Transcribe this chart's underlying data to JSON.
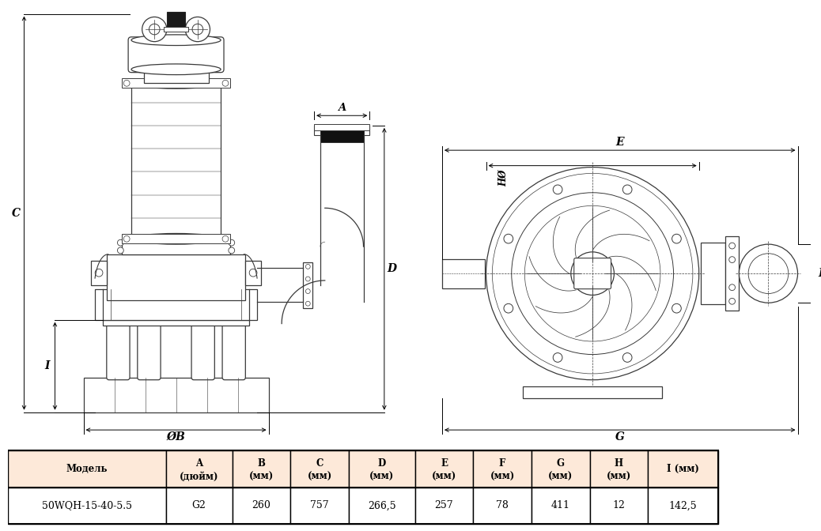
{
  "table_header_row1": [
    "Модель",
    "A",
    "B",
    "C",
    "D",
    "E",
    "F",
    "G",
    "H",
    "I (мм)"
  ],
  "table_header_row2": [
    "",
    "(дюйм)",
    "(мм)",
    "(мм)",
    "(мм)",
    "(мм)",
    "(мм)",
    "(мм)",
    "(мм)",
    ""
  ],
  "table_data": [
    "50WQH-15-40-5.5",
    "G2",
    "260",
    "757",
    "266,5",
    "257",
    "78",
    "411",
    "12",
    "142,5"
  ],
  "header_bg": "#fde9d9",
  "row_bg": "#ffffff",
  "fig_width": 10.38,
  "fig_height": 6.72
}
